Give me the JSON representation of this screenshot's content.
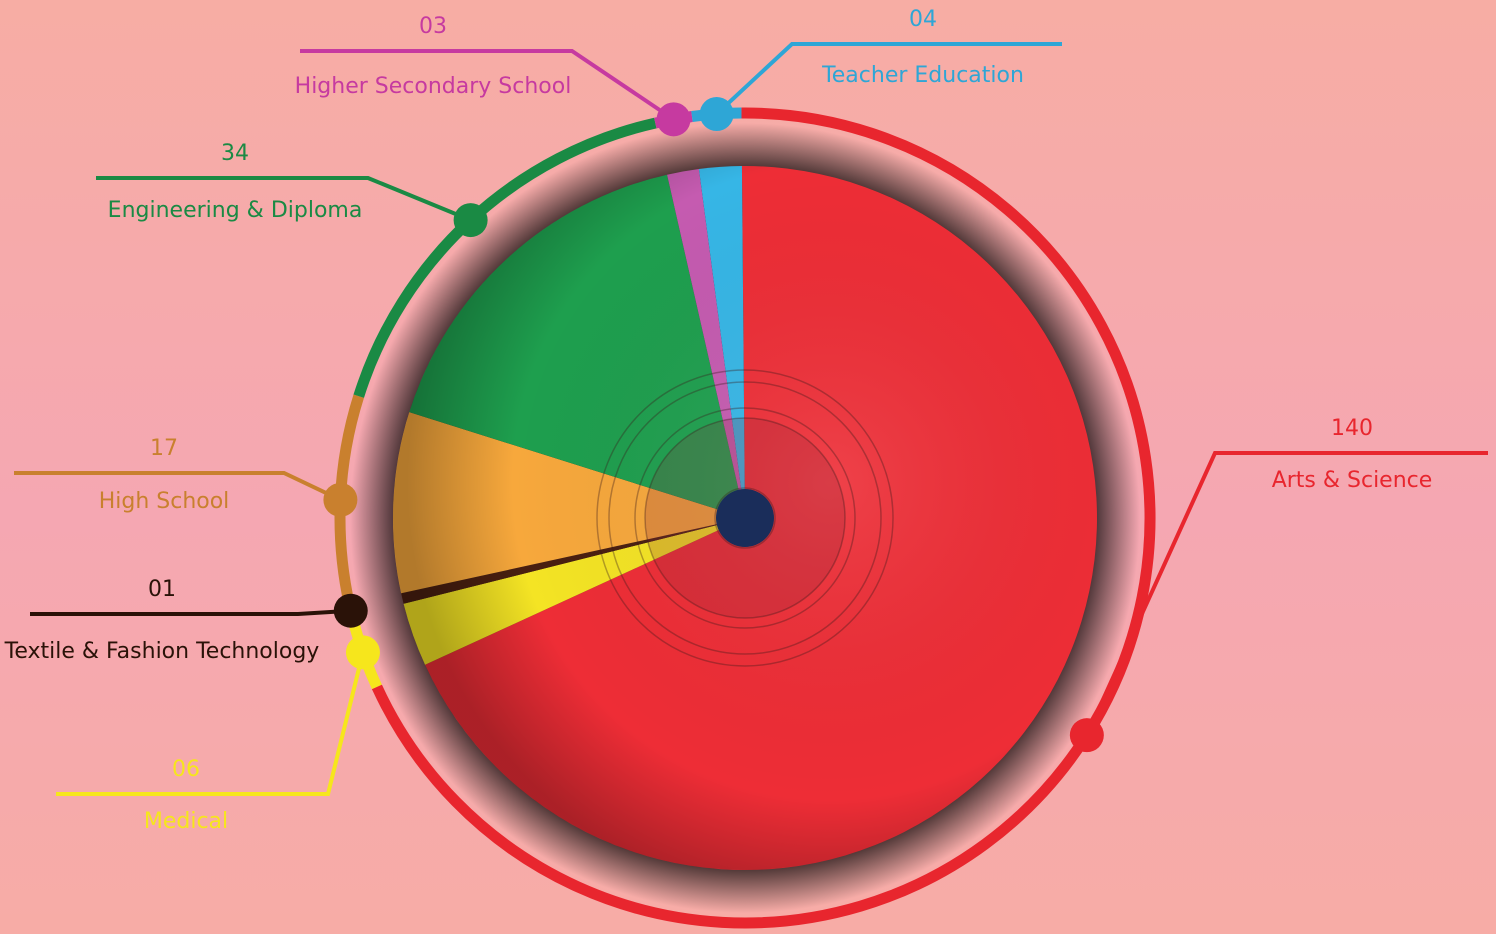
{
  "chart_data": {
    "type": "pie",
    "title": "",
    "categories": [
      "Arts & Science",
      "Medical",
      "Textile & Fashion Technology",
      "High School",
      "Engineering & Diploma",
      "Higher Secondary School",
      "Teacher Education"
    ],
    "values": [
      140,
      6,
      1,
      17,
      34,
      3,
      4
    ],
    "value_labels": [
      "140",
      "06",
      "01",
      "17",
      "34",
      "03",
      "04"
    ],
    "colors": [
      "#ee2d36",
      "#f4e424",
      "#4a1f10",
      "#f7a83c",
      "#1e9f4e",
      "#c55bb0",
      "#36b6e6"
    ],
    "label_colors": [
      "#e8262e",
      "#f6e61c",
      "#2a1208",
      "#c9802e",
      "#1a8a44",
      "#c63aa0",
      "#2ea6d6"
    ],
    "legend": "none",
    "grid": false
  }
}
